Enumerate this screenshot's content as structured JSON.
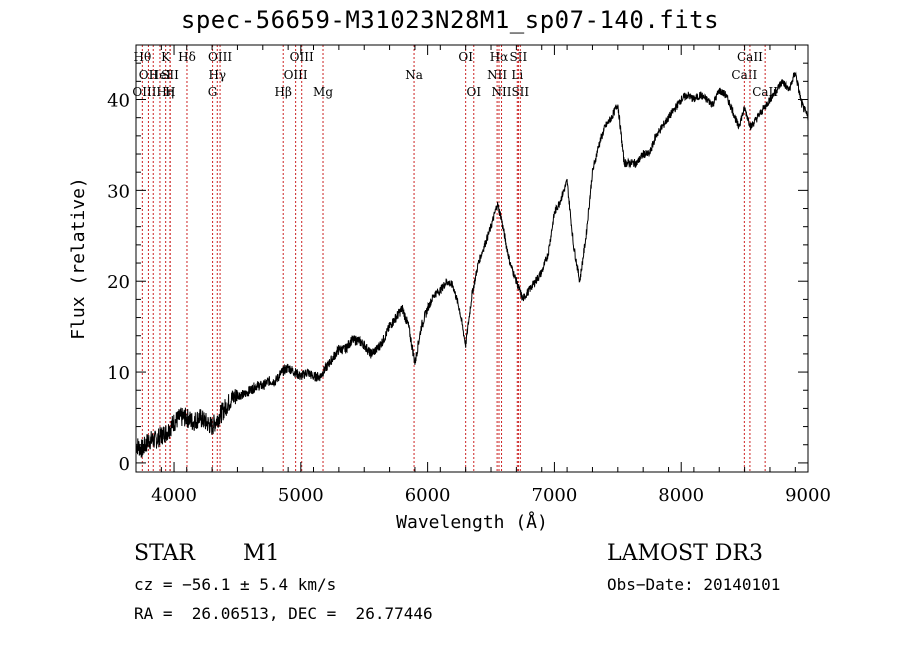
{
  "chart_data": {
    "type": "line",
    "title": "spec-56659-M31023N28M1_sp07-140.fits",
    "xlabel": "Wavelength (Å)",
    "ylabel": "Flux (relative)",
    "xlim": [
      3700,
      9000
    ],
    "ylim": [
      -1,
      46
    ],
    "xticks": [
      4000,
      5000,
      6000,
      7000,
      8000,
      9000
    ],
    "yticks": [
      0,
      10,
      20,
      30,
      40
    ],
    "series": [
      {
        "name": "spectrum",
        "x": [
          3700,
          3750,
          3800,
          3850,
          3900,
          3950,
          4000,
          4050,
          4100,
          4150,
          4200,
          4250,
          4300,
          4350,
          4400,
          4450,
          4500,
          4550,
          4600,
          4650,
          4700,
          4750,
          4800,
          4850,
          4900,
          4950,
          5000,
          5050,
          5100,
          5150,
          5200,
          5250,
          5300,
          5350,
          5400,
          5450,
          5500,
          5550,
          5600,
          5650,
          5700,
          5750,
          5800,
          5850,
          5900,
          5950,
          6000,
          6050,
          6100,
          6150,
          6200,
          6250,
          6300,
          6350,
          6400,
          6450,
          6500,
          6550,
          6580,
          6620,
          6650,
          6700,
          6750,
          6800,
          6850,
          6900,
          6950,
          7000,
          7050,
          7100,
          7150,
          7200,
          7250,
          7300,
          7350,
          7400,
          7450,
          7500,
          7550,
          7600,
          7650,
          7700,
          7750,
          7800,
          7850,
          7900,
          7950,
          8000,
          8050,
          8100,
          8150,
          8200,
          8250,
          8300,
          8350,
          8400,
          8450,
          8500,
          8550,
          8600,
          8650,
          8700,
          8750,
          8800,
          8850,
          8900,
          8950,
          9000
        ],
        "y": [
          2,
          1.5,
          2.5,
          2.5,
          3,
          3.5,
          4.5,
          5,
          5,
          4.5,
          5,
          4.5,
          4,
          5,
          6,
          7,
          7.5,
          7.5,
          8,
          8.5,
          8.5,
          9,
          9,
          10,
          10.5,
          10,
          9.5,
          10,
          9.5,
          9.5,
          10.5,
          11.5,
          12.5,
          12.5,
          13.5,
          13.5,
          13,
          12,
          12.5,
          13.5,
          15,
          16,
          17,
          15,
          11,
          15,
          17,
          18.5,
          19,
          20,
          19.5,
          17,
          13,
          18.5,
          22,
          24,
          26,
          28.5,
          27,
          24,
          22,
          20,
          18,
          19,
          20,
          21,
          23,
          27.5,
          29,
          31,
          24,
          20,
          25,
          32,
          35,
          37,
          38,
          39.5,
          33,
          33,
          33,
          34,
          34,
          36,
          37,
          38,
          39,
          40,
          40.5,
          40,
          40.5,
          40,
          39.5,
          41,
          40.5,
          39,
          37,
          39,
          37,
          38,
          39,
          40,
          41,
          42,
          41,
          43,
          39.5,
          38
        ]
      }
    ],
    "lines": [
      {
        "wl": 3750,
        "label": "Hθ",
        "row": 0
      },
      {
        "wl": 3798,
        "label": "OII",
        "row": 1
      },
      {
        "wl": 3836,
        "label": "OIIIHη",
        "row": 2
      },
      {
        "wl": 3889,
        "label": "HeI",
        "row": 1
      },
      {
        "wl": 3934,
        "label": "K",
        "row": 0
      },
      {
        "wl": 3968,
        "label": "SII",
        "row": 1
      },
      {
        "wl": 3970,
        "label": "H",
        "row": 2
      },
      {
        "wl": 4102,
        "label": "Hδ",
        "row": 0
      },
      {
        "wl": 4304,
        "label": "G",
        "row": 2
      },
      {
        "wl": 4341,
        "label": "Hγ",
        "row": 1
      },
      {
        "wl": 4363,
        "label": "OIII",
        "row": 0
      },
      {
        "wl": 4861,
        "label": "Hβ",
        "row": 2
      },
      {
        "wl": 4959,
        "label": "OIII",
        "row": 1
      },
      {
        "wl": 5007,
        "label": "OIII",
        "row": 0
      },
      {
        "wl": 5175,
        "label": "Mg",
        "row": 2
      },
      {
        "wl": 5893,
        "label": "Na",
        "row": 1
      },
      {
        "wl": 6300,
        "label": "OI",
        "row": 0
      },
      {
        "wl": 6364,
        "label": "OI",
        "row": 2
      },
      {
        "wl": 6548,
        "label": "NII",
        "row": 1
      },
      {
        "wl": 6563,
        "label": "Hα",
        "row": 0
      },
      {
        "wl": 6583,
        "label": "NII",
        "row": 2
      },
      {
        "wl": 6707,
        "label": "Li",
        "row": 1
      },
      {
        "wl": 6716,
        "label": "SII",
        "row": 0
      },
      {
        "wl": 6731,
        "label": "SII",
        "row": 2
      },
      {
        "wl": 8498,
        "label": "CaII",
        "row": 1
      },
      {
        "wl": 8542,
        "label": "CaII",
        "row": 0
      },
      {
        "wl": 8662,
        "label": "CaII",
        "row": 2
      }
    ]
  },
  "info": {
    "class": "STAR",
    "subclass": "M1",
    "survey": "LAMOST DR3",
    "cz": "cz = −56.1 ± 5.4 km/s",
    "obs_date": "Obs−Date: 20140101",
    "coords": "RA =  26.06513, DEC =  26.77446"
  },
  "colors": {
    "line": "#000000",
    "marker": "#cc2222",
    "axis": "#000000"
  }
}
